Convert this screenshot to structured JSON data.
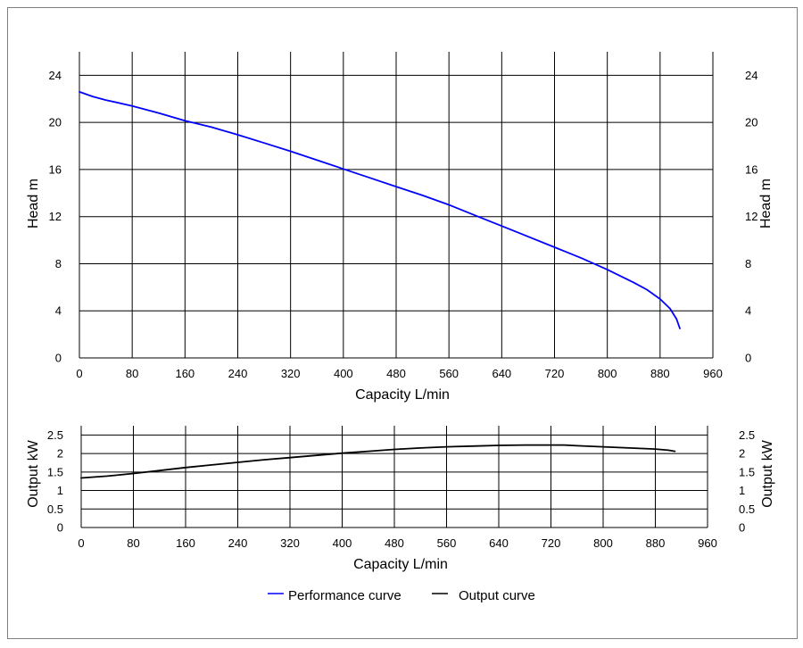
{
  "chart_data": [
    {
      "type": "line",
      "title": "",
      "xlabel": "Capacity L/min",
      "ylabel": "Head m",
      "ylabel_right": "Head m",
      "xlim": [
        0,
        960
      ],
      "ylim": [
        0,
        26
      ],
      "x_ticks": [
        0,
        80,
        160,
        240,
        320,
        400,
        480,
        560,
        640,
        720,
        800,
        880,
        960
      ],
      "y_ticks": [
        0,
        4,
        8,
        12,
        16,
        20,
        24
      ],
      "grid": true,
      "series": [
        {
          "name": "Performance curve",
          "color": "#0000ff",
          "x": [
            0,
            20,
            40,
            80,
            120,
            160,
            200,
            240,
            280,
            320,
            360,
            400,
            440,
            480,
            520,
            560,
            600,
            640,
            680,
            720,
            760,
            800,
            840,
            860,
            880,
            895,
            905,
            910
          ],
          "y": [
            22.6,
            22.2,
            21.9,
            21.4,
            20.8,
            20.15,
            19.6,
            18.95,
            18.25,
            17.55,
            16.8,
            16.05,
            15.3,
            14.55,
            13.8,
            13.0,
            12.1,
            11.2,
            10.3,
            9.4,
            8.5,
            7.5,
            6.4,
            5.8,
            5.0,
            4.2,
            3.3,
            2.5
          ]
        }
      ]
    },
    {
      "type": "line",
      "title": "",
      "xlabel": "Capacity L/min",
      "ylabel": "Output kW",
      "ylabel_right": "Output kW",
      "xlim": [
        0,
        960
      ],
      "ylim": [
        0,
        2.75
      ],
      "x_ticks": [
        0,
        80,
        160,
        240,
        320,
        400,
        480,
        560,
        640,
        720,
        800,
        880,
        960
      ],
      "y_ticks": [
        0,
        0.5,
        1,
        1.5,
        2,
        2.5
      ],
      "y_tick_labels": [
        "0",
        "0.5",
        "1",
        "1.5",
        "2",
        "2.5"
      ],
      "grid": true,
      "series": [
        {
          "name": "Output curve",
          "color": "#000000",
          "x": [
            0,
            40,
            80,
            120,
            160,
            200,
            240,
            280,
            320,
            360,
            400,
            440,
            480,
            520,
            560,
            600,
            640,
            680,
            720,
            740,
            760,
            800,
            840,
            880,
            900,
            910
          ],
          "y": [
            1.34,
            1.39,
            1.46,
            1.54,
            1.62,
            1.69,
            1.76,
            1.83,
            1.89,
            1.95,
            2.01,
            2.06,
            2.11,
            2.15,
            2.18,
            2.2,
            2.22,
            2.23,
            2.23,
            2.23,
            2.21,
            2.18,
            2.15,
            2.12,
            2.09,
            2.06
          ]
        }
      ]
    }
  ],
  "legend": {
    "items": [
      {
        "label": "Performance curve",
        "color": "#0000ff"
      },
      {
        "label": "Output curve",
        "color": "#000000"
      }
    ]
  }
}
